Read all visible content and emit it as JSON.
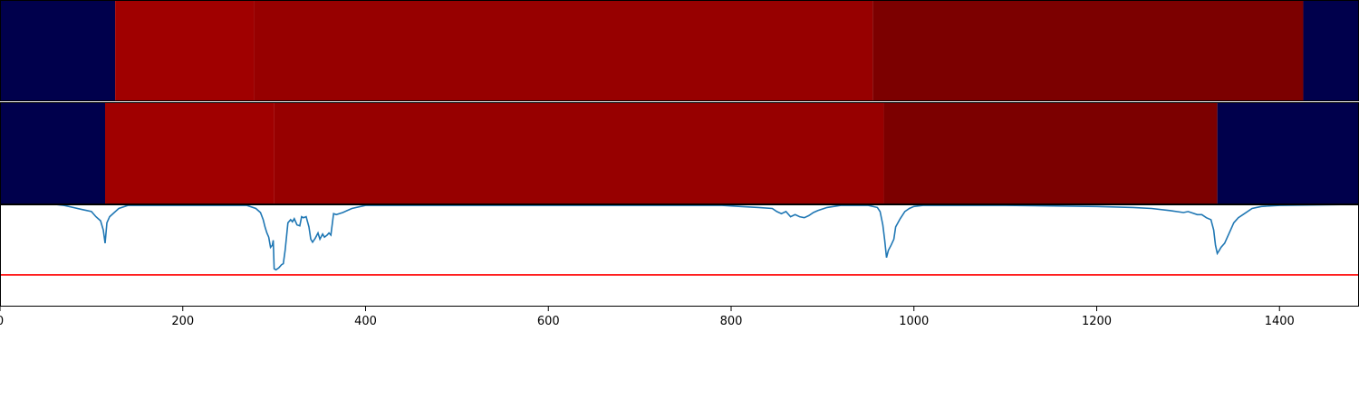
{
  "chart_data": [
    {
      "type": "heatmap",
      "name": "row-1",
      "segments": [
        {
          "start": 0,
          "end": 126,
          "color": "#00004c"
        },
        {
          "start": 126,
          "end": 278,
          "color": "#a00000"
        },
        {
          "start": 278,
          "end": 955,
          "color": "#970000"
        },
        {
          "start": 955,
          "end": 1426,
          "color": "#7c0000"
        },
        {
          "start": 1426,
          "end": 1487,
          "color": "#00004c"
        }
      ]
    },
    {
      "type": "heatmap",
      "name": "row-2",
      "segments": [
        {
          "start": 0,
          "end": 115,
          "color": "#00004c"
        },
        {
          "start": 115,
          "end": 300,
          "color": "#a00000"
        },
        {
          "start": 300,
          "end": 967,
          "color": "#970000"
        },
        {
          "start": 967,
          "end": 1332,
          "color": "#7c0000"
        },
        {
          "start": 1332,
          "end": 1487,
          "color": "#00004c"
        }
      ]
    },
    {
      "type": "line",
      "xlim": [
        0,
        1487
      ],
      "ylim": [
        0,
        1
      ],
      "line_color": "#1f77b4",
      "threshold": 0.31,
      "threshold_color": "#ff0000",
      "x_ticks": [
        0,
        200,
        400,
        600,
        800,
        1000,
        1200,
        1400
      ],
      "x_tick_labels": [
        "0",
        "200",
        "400",
        "600",
        "800",
        "1000",
        "1200",
        "1400"
      ],
      "x": [
        0,
        60,
        70,
        80,
        90,
        100,
        105,
        110,
        113,
        115,
        117,
        120,
        125,
        130,
        140,
        270,
        280,
        285,
        288,
        290,
        292,
        294,
        296,
        298,
        299,
        300,
        302,
        305,
        308,
        310,
        312,
        315,
        318,
        320,
        322,
        325,
        328,
        330,
        332,
        335,
        338,
        340,
        342,
        345,
        348,
        350,
        353,
        355,
        358,
        360,
        362,
        365,
        368,
        375,
        385,
        400,
        500,
        600,
        700,
        790,
        810,
        830,
        845,
        850,
        855,
        860,
        865,
        870,
        875,
        880,
        885,
        890,
        895,
        905,
        920,
        950,
        960,
        963,
        966,
        968,
        970,
        972,
        975,
        978,
        980,
        985,
        990,
        995,
        1000,
        1010,
        1030,
        1100,
        1200,
        1240,
        1260,
        1280,
        1295,
        1300,
        1310,
        1315,
        1320,
        1325,
        1328,
        1330,
        1332,
        1334,
        1336,
        1340,
        1345,
        1350,
        1355,
        1360,
        1370,
        1380,
        1400,
        1487
      ],
      "y": [
        1.0,
        1.0,
        0.99,
        0.97,
        0.95,
        0.93,
        0.88,
        0.84,
        0.75,
        0.62,
        0.82,
        0.88,
        0.92,
        0.96,
        0.99,
        0.99,
        0.96,
        0.92,
        0.85,
        0.78,
        0.72,
        0.68,
        0.58,
        0.6,
        0.65,
        0.37,
        0.36,
        0.38,
        0.41,
        0.42,
        0.55,
        0.82,
        0.85,
        0.83,
        0.86,
        0.8,
        0.79,
        0.88,
        0.87,
        0.88,
        0.78,
        0.66,
        0.63,
        0.67,
        0.72,
        0.66,
        0.71,
        0.68,
        0.7,
        0.72,
        0.7,
        0.91,
        0.9,
        0.92,
        0.96,
        0.99,
        0.99,
        0.99,
        0.99,
        0.99,
        0.98,
        0.97,
        0.96,
        0.93,
        0.91,
        0.93,
        0.88,
        0.9,
        0.88,
        0.87,
        0.89,
        0.92,
        0.94,
        0.97,
        0.99,
        0.99,
        0.97,
        0.93,
        0.8,
        0.65,
        0.48,
        0.55,
        0.6,
        0.66,
        0.78,
        0.86,
        0.93,
        0.96,
        0.98,
        0.99,
        0.99,
        0.99,
        0.98,
        0.97,
        0.96,
        0.94,
        0.92,
        0.93,
        0.9,
        0.9,
        0.87,
        0.85,
        0.75,
        0.6,
        0.52,
        0.55,
        0.58,
        0.62,
        0.72,
        0.82,
        0.87,
        0.9,
        0.96,
        0.98,
        0.99,
        1.0
      ]
    }
  ]
}
